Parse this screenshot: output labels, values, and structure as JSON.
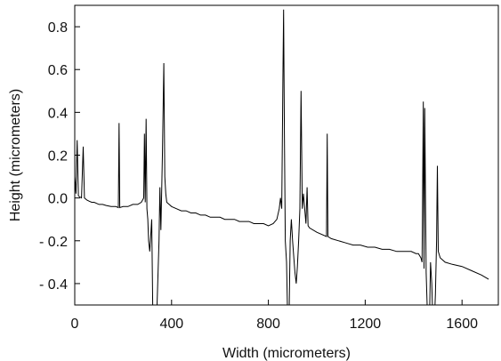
{
  "chart_data": {
    "type": "line",
    "title": "",
    "xlabel": "Width (micrometers)",
    "ylabel": "Height (micrometers)",
    "xlim": [
      0,
      1750
    ],
    "ylim": [
      -0.5,
      0.9
    ],
    "xticks": [
      0,
      400,
      800,
      1200,
      1600
    ],
    "xtick_labels": [
      "0",
      "400",
      "800",
      "1200",
      "1600"
    ],
    "yticks": [
      -0.4,
      -0.2,
      0.0,
      0.2,
      0.4,
      0.6,
      0.8
    ],
    "ytick_labels": [
      "- 0.4",
      "- 0.2",
      "0.0",
      "0.2",
      "0.4",
      "0.6",
      "0.8"
    ],
    "grid": false,
    "legend": "none",
    "line_color": "#000000",
    "series": [
      {
        "x": [
          0,
          5,
          10,
          15,
          20,
          28,
          35,
          40,
          50,
          60,
          70,
          80,
          90,
          100,
          115,
          130,
          150,
          170,
          180,
          183,
          186,
          200,
          220,
          240,
          260,
          275,
          285,
          288,
          291,
          295,
          298,
          302,
          305,
          310,
          318,
          322,
          326,
          330,
          340,
          348,
          352,
          356,
          362,
          368,
          372,
          376,
          380,
          390,
          400,
          420,
          440,
          460,
          480,
          500,
          520,
          540,
          560,
          580,
          600,
          620,
          640,
          660,
          680,
          700,
          720,
          740,
          760,
          780,
          800,
          820,
          835,
          845,
          850,
          855,
          860,
          863,
          866,
          870,
          875,
          880,
          885,
          890,
          895,
          900,
          905,
          910,
          915,
          920,
          925,
          930,
          935,
          940,
          945,
          955,
          960,
          964,
          970,
          1000,
          1040,
          1043,
          1046,
          1060,
          1090,
          1120,
          1150,
          1180,
          1210,
          1240,
          1270,
          1300,
          1330,
          1360,
          1390,
          1410,
          1420,
          1430,
          1435,
          1440,
          1443,
          1446,
          1452,
          1456,
          1460,
          1465,
          1470,
          1475,
          1480,
          1485,
          1490,
          1495,
          1498,
          1502,
          1510,
          1530,
          1560,
          1600,
          1640,
          1680,
          1710
        ],
        "y": [
          0.1,
          0.02,
          0.27,
          0.01,
          0.005,
          0.0,
          0.24,
          0.0,
          -0.01,
          -0.015,
          -0.02,
          -0.02,
          -0.025,
          -0.03,
          -0.03,
          -0.035,
          -0.04,
          -0.04,
          -0.045,
          0.35,
          -0.045,
          -0.04,
          -0.04,
          -0.03,
          -0.03,
          -0.02,
          0.0,
          0.3,
          -0.02,
          0.37,
          -0.05,
          -0.1,
          -0.2,
          -0.25,
          -0.1,
          -0.5,
          -0.5,
          -0.55,
          -0.5,
          -0.2,
          0.05,
          -0.15,
          0.2,
          0.63,
          0.1,
          0.02,
          -0.02,
          -0.03,
          -0.04,
          -0.05,
          -0.06,
          -0.06,
          -0.07,
          -0.07,
          -0.08,
          -0.08,
          -0.09,
          -0.09,
          -0.09,
          -0.1,
          -0.1,
          -0.1,
          -0.11,
          -0.11,
          -0.11,
          -0.12,
          -0.12,
          -0.12,
          -0.13,
          -0.12,
          -0.1,
          -0.05,
          0.0,
          -0.05,
          0.55,
          0.88,
          0.3,
          -0.2,
          -0.3,
          -0.6,
          -0.6,
          -0.2,
          -0.1,
          -0.2,
          -0.28,
          -0.35,
          -0.4,
          -0.32,
          -0.2,
          -0.05,
          0.5,
          -0.05,
          0.02,
          -0.12,
          0.05,
          -0.13,
          -0.14,
          -0.16,
          -0.18,
          0.3,
          -0.18,
          -0.19,
          -0.2,
          -0.21,
          -0.22,
          -0.22,
          -0.23,
          -0.23,
          -0.24,
          -0.24,
          -0.25,
          -0.25,
          -0.25,
          -0.26,
          -0.26,
          -0.28,
          -0.3,
          0.45,
          -0.33,
          0.42,
          -0.35,
          -0.5,
          -0.6,
          -0.6,
          -0.3,
          -0.4,
          -0.6,
          -0.6,
          -0.45,
          -0.2,
          0.15,
          -0.25,
          -0.28,
          -0.3,
          -0.31,
          -0.32,
          -0.34,
          -0.36,
          -0.38
        ]
      }
    ]
  }
}
